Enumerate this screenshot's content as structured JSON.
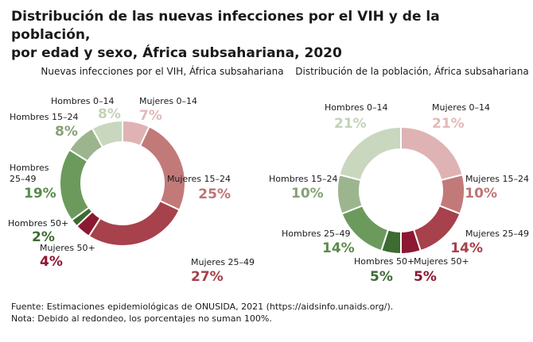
{
  "title_line1": "Distribución de las nuevas infecciones por el VIH y de la población,",
  "title_line2": "por edad y sexo, África subsahariana, 2020",
  "chart_data": [
    {
      "type": "pie",
      "subtitle": "Nuevas infecciones por el VIH, África subsahariana",
      "slices": [
        {
          "name": "Mujeres 0–14",
          "label": "7%",
          "value": 7,
          "color": "#dfb3b3",
          "text_color": "#e3b9b9"
        },
        {
          "name": "Mujeres 15–24",
          "label": "25%",
          "value": 25,
          "color": "#c27a79",
          "text_color": "#bf7473"
        },
        {
          "name": "Mujeres 25–49",
          "label": "27%",
          "value": 27,
          "color": "#a7414c",
          "text_color": "#a73f49"
        },
        {
          "name": "Mujeres 50+",
          "label": "4%",
          "value": 4,
          "color": "#8c1832",
          "text_color": "#8c1832"
        },
        {
          "name": "Hombres 50+",
          "label": "2%",
          "value": 2,
          "color": "#3d6b32",
          "text_color": "#3d6b32"
        },
        {
          "name": "Hombres 25–49",
          "label": "19%",
          "value": 19,
          "color": "#6c9a5c",
          "text_color": "#5b8a4c"
        },
        {
          "name": "Hombres 15–24",
          "label": "8%",
          "value": 8,
          "color": "#9db58f",
          "text_color": "#86a276"
        },
        {
          "name": "Hombres 0–14",
          "label": "8%",
          "value": 8,
          "color": "#c9d7be",
          "text_color": "#c3d2b7"
        }
      ]
    },
    {
      "type": "pie",
      "subtitle": "Distribución de la población, África subsahariana",
      "slices": [
        {
          "name": "Mujeres 0–14",
          "label": "21%",
          "value": 21,
          "color": "#dfb3b3",
          "text_color": "#e3b9b9"
        },
        {
          "name": "Mujeres 15–24",
          "label": "10%",
          "value": 10,
          "color": "#c27a79",
          "text_color": "#bf7473"
        },
        {
          "name": "Mujeres 25–49",
          "label": "14%",
          "value": 14,
          "color": "#a7414c",
          "text_color": "#a73f49"
        },
        {
          "name": "Mujeres 50+",
          "label": "5%",
          "value": 5,
          "color": "#8c1832",
          "text_color": "#8c1832"
        },
        {
          "name": "Hombres 50+",
          "label": "5%",
          "value": 5,
          "color": "#3d6b32",
          "text_color": "#3d6b32"
        },
        {
          "name": "Hombres 25–49",
          "label": "14%",
          "value": 14,
          "color": "#6c9a5c",
          "text_color": "#5b8a4c"
        },
        {
          "name": "Hombres 15–24",
          "label": "10%",
          "value": 10,
          "color": "#9db58f",
          "text_color": "#86a276"
        },
        {
          "name": "Hombres 0–14",
          "label": "21%",
          "value": 21,
          "color": "#c9d7be",
          "text_color": "#c3d2b7"
        }
      ]
    }
  ],
  "footer_line1": "Fuente: Estimaciones epidemiológicas de ONUSIDA, 2021 (https://aidsinfo.unaids.org/).",
  "footer_line2": "Nota: Debido al redondeo, los porcentajes no suman 100%."
}
